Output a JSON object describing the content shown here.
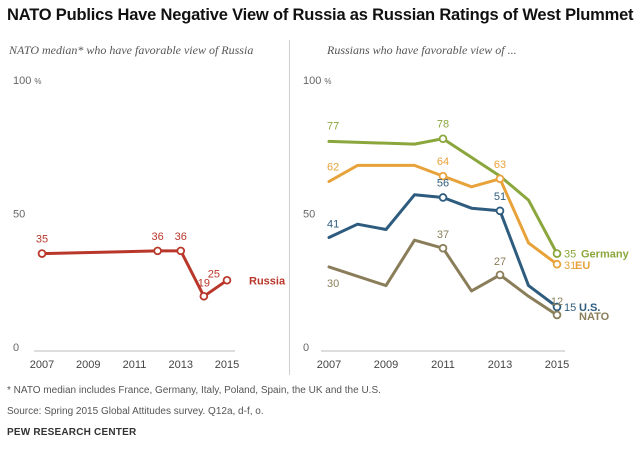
{
  "title": "NATO Publics Have Negative View of Russia as Russian Ratings of West Plummet",
  "chart_data": [
    {
      "type": "line",
      "subtitle": "NATO median* who have favorable view of Russia",
      "xlim": [
        2007,
        2015
      ],
      "ylim": [
        0,
        100
      ],
      "x_ticks": [
        "2007",
        "2009",
        "2011",
        "2013",
        "2015"
      ],
      "y_ticks": [
        {
          "value": 0,
          "label": "0"
        },
        {
          "value": 50,
          "label": "50"
        },
        {
          "value": 100,
          "label": "100",
          "unit": "%"
        }
      ],
      "series": [
        {
          "name": "Russia",
          "color": "#b8372a",
          "points": [
            {
              "x": 2007,
              "y": 35,
              "label": "35",
              "marker": true
            },
            {
              "x": 2012,
              "y": 36,
              "label": "36",
              "marker": true
            },
            {
              "x": 2013,
              "y": 36,
              "label": "36",
              "marker": true
            },
            {
              "x": 2014,
              "y": 19,
              "label": "19",
              "marker": true
            },
            {
              "x": 2015,
              "y": 25,
              "label": "25",
              "marker": true
            }
          ]
        }
      ]
    },
    {
      "type": "line",
      "subtitle": "Russians who have favorable view of ...",
      "xlim": [
        2007,
        2015
      ],
      "ylim": [
        0,
        100
      ],
      "x_ticks": [
        "2007",
        "2009",
        "2011",
        "2013",
        "2015"
      ],
      "y_ticks": [
        {
          "value": 0,
          "label": "0"
        },
        {
          "value": 50,
          "label": "50"
        },
        {
          "value": 100,
          "label": "100",
          "unit": "%"
        }
      ],
      "series": [
        {
          "name": "Germany",
          "color": "#8aa63c",
          "points": [
            {
              "x": 2007,
              "y": 77,
              "label": "77",
              "marker": false
            },
            {
              "x": 2010,
              "y": 76,
              "marker": false
            },
            {
              "x": 2011,
              "y": 78,
              "label": "78",
              "marker": true
            },
            {
              "x": 2012,
              "y": 71,
              "marker": false
            },
            {
              "x": 2013,
              "y": 64,
              "marker": false
            },
            {
              "x": 2014,
              "y": 55,
              "marker": false
            },
            {
              "x": 2015,
              "y": 35,
              "label": "35",
              "marker": true
            }
          ]
        },
        {
          "name": "EU",
          "color": "#e8a23a",
          "points": [
            {
              "x": 2007,
              "y": 62,
              "label": "62",
              "marker": false
            },
            {
              "x": 2008,
              "y": 68,
              "marker": false
            },
            {
              "x": 2010,
              "y": 68,
              "marker": false
            },
            {
              "x": 2011,
              "y": 64,
              "label": "64",
              "marker": true
            },
            {
              "x": 2012,
              "y": 60,
              "marker": false
            },
            {
              "x": 2013,
              "y": 63,
              "label": "63",
              "marker": true
            },
            {
              "x": 2014,
              "y": 39,
              "marker": false
            },
            {
              "x": 2015,
              "y": 31,
              "label": "31",
              "marker": true
            }
          ]
        },
        {
          "name": "U.S.",
          "color": "#2e5c7e",
          "points": [
            {
              "x": 2007,
              "y": 41,
              "label": "41",
              "marker": false
            },
            {
              "x": 2008,
              "y": 46,
              "marker": false
            },
            {
              "x": 2009,
              "y": 44,
              "marker": false
            },
            {
              "x": 2010,
              "y": 57,
              "marker": false
            },
            {
              "x": 2011,
              "y": 56,
              "label": "56",
              "marker": true
            },
            {
              "x": 2012,
              "y": 52,
              "marker": false
            },
            {
              "x": 2013,
              "y": 51,
              "label": "51",
              "marker": true
            },
            {
              "x": 2014,
              "y": 23,
              "marker": false
            },
            {
              "x": 2015,
              "y": 15,
              "label": "15",
              "marker": true
            }
          ]
        },
        {
          "name": "NATO",
          "color": "#8a7e5a",
          "points": [
            {
              "x": 2007,
              "y": 30,
              "label": "30",
              "marker": false
            },
            {
              "x": 2009,
              "y": 23,
              "marker": false
            },
            {
              "x": 2010,
              "y": 40,
              "marker": false
            },
            {
              "x": 2011,
              "y": 37,
              "label": "37",
              "marker": true
            },
            {
              "x": 2012,
              "y": 21,
              "marker": false
            },
            {
              "x": 2013,
              "y": 27,
              "label": "27",
              "marker": true
            },
            {
              "x": 2014,
              "y": 19,
              "marker": false
            },
            {
              "x": 2015,
              "y": 12,
              "label": "12",
              "marker": true
            }
          ]
        }
      ]
    }
  ],
  "footnotes": {
    "note": "* NATO median includes France, Germany, Italy, Poland, Spain, the UK and the U.S.",
    "source": "Source: Spring 2015 Global Attitudes survey. Q12a, d-f, o."
  },
  "branding": "PEW RESEARCH CENTER"
}
